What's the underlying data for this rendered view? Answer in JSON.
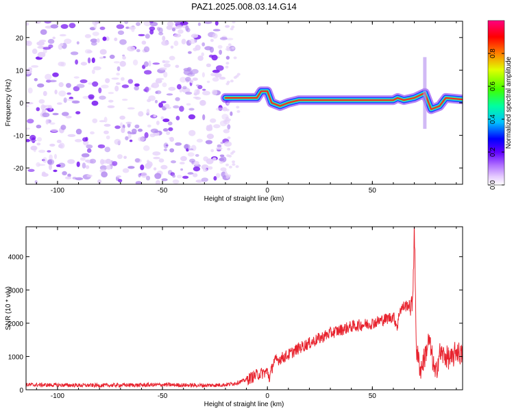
{
  "figure": {
    "title": "PAZ1.2025.008.03.14.G14"
  },
  "chart_data": [
    {
      "type": "heatmap",
      "xlabel": "Height of straight line (km)",
      "ylabel": "Frequency (Hz)",
      "xlim": [
        -115,
        93
      ],
      "ylim": [
        -25,
        25
      ],
      "xticks": [
        -100,
        -50,
        0,
        50
      ],
      "yticks": [
        -20,
        -10,
        0,
        10,
        20
      ],
      "colorbar": {
        "label": "Normalized spectral amplitude",
        "range": [
          0,
          1
        ],
        "ticks": [
          0.0,
          0.2,
          0.4,
          0.6,
          0.8
        ]
      },
      "colors": {
        "noise_light": "#e6d2fa",
        "noise_mid": "#b48cf0",
        "noise_dark": "#7a1cf0",
        "peak": "#ff2020",
        "mid": "#40e070",
        "low": "#2040ff"
      },
      "features": {
        "noise_region_x": [
          -115,
          -20
        ],
        "signal_line": [
          {
            "x": -20,
            "freq": 1.5
          },
          {
            "x": -5,
            "freq": 1.5
          },
          {
            "x": -3,
            "freq": 3.5
          },
          {
            "x": 0,
            "freq": 3.5
          },
          {
            "x": 2,
            "freq": 0
          },
          {
            "x": 6,
            "freq": -1
          },
          {
            "x": 10,
            "freq": 0
          },
          {
            "x": 15,
            "freq": 0.8
          },
          {
            "x": 60,
            "freq": 0.8
          },
          {
            "x": 62,
            "freq": 1.5
          },
          {
            "x": 65,
            "freq": 0.8
          },
          {
            "x": 70,
            "freq": 1.5
          },
          {
            "x": 75,
            "freq": 3
          },
          {
            "x": 78,
            "freq": -2
          },
          {
            "x": 82,
            "freq": -1
          },
          {
            "x": 85,
            "freq": 1.5
          },
          {
            "x": 93,
            "freq": 1
          }
        ]
      }
    },
    {
      "type": "line",
      "xlabel": "Height of straight line (km)",
      "ylabel": "SNR (10 * v/v)",
      "xlim": [
        -115,
        93
      ],
      "ylim": [
        0,
        4900
      ],
      "xticks": [
        -100,
        -50,
        0,
        50
      ],
      "yticks": [
        0,
        1000,
        2000,
        3000,
        4000
      ],
      "color": "#e8232e",
      "series": [
        {
          "x": [
            -115,
            -100,
            -90,
            -80,
            -70,
            -60,
            -50,
            -40,
            -30,
            -20,
            -15,
            -10,
            -5,
            0,
            1,
            3,
            5,
            10,
            15,
            20,
            25,
            30,
            35,
            40,
            45,
            50,
            55,
            60,
            62,
            63,
            65,
            67,
            68,
            69,
            69.5,
            70,
            70.5,
            71,
            73,
            75,
            77,
            79,
            80,
            82,
            85,
            88,
            90,
            93
          ],
          "y": [
            150,
            140,
            135,
            130,
            140,
            140,
            150,
            140,
            130,
            150,
            200,
            300,
            450,
            550,
            350,
            850,
            900,
            1050,
            1250,
            1400,
            1550,
            1700,
            1800,
            1900,
            1950,
            2000,
            2100,
            2200,
            1900,
            2400,
            2500,
            2550,
            2500,
            2500,
            3500,
            4900,
            3000,
            1200,
            600,
            1000,
            1500,
            800,
            400,
            1100,
            1000,
            900,
            1200,
            1000
          ]
        }
      ]
    }
  ]
}
